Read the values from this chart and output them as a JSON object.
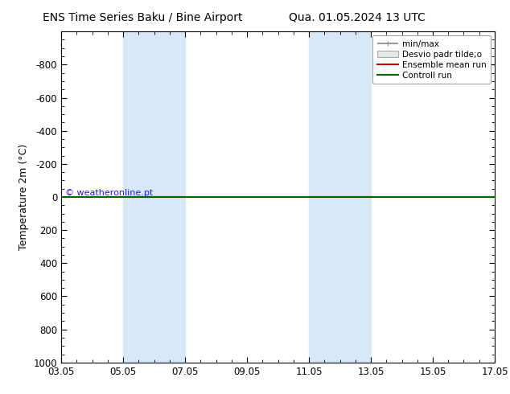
{
  "title_left": "ENS Time Series Baku / Bine Airport",
  "title_right": "Qua. 01.05.2024 13 UTC",
  "ylabel": "Temperature 2m (°C)",
  "xtick_positions": [
    0,
    2,
    4,
    6,
    8,
    10,
    12,
    14
  ],
  "xtick_labels": [
    "03.05",
    "05.05",
    "07.05",
    "09.05",
    "11.05",
    "13.05",
    "15.05",
    "17.05"
  ],
  "ylim_top": -1000,
  "ylim_bottom": 1000,
  "yticks": [
    -800,
    -600,
    -400,
    -200,
    0,
    200,
    400,
    600,
    800,
    1000
  ],
  "shaded_bands": [
    {
      "x_start": 2,
      "x_end": 4
    },
    {
      "x_start": 8,
      "x_end": 10
    }
  ],
  "shaded_color": "#d6e8f7",
  "watermark": "© weatheronline.pt",
  "watermark_color": "#1a1aff",
  "legend_items": [
    {
      "label": "min/max",
      "color": "#999999",
      "lw": 1.5
    },
    {
      "label": "Desvio padr tilde;o",
      "color": "#cccccc",
      "lw": 8
    },
    {
      "label": "Ensemble mean run",
      "color": "#cc0000",
      "lw": 1.5
    },
    {
      "label": "Controll run",
      "color": "#006600",
      "lw": 1.5
    }
  ],
  "background_color": "white",
  "axes_bg": "white",
  "x_total_days": 14,
  "title_fontsize": 10,
  "axis_label_fontsize": 9,
  "tick_fontsize": 8.5
}
